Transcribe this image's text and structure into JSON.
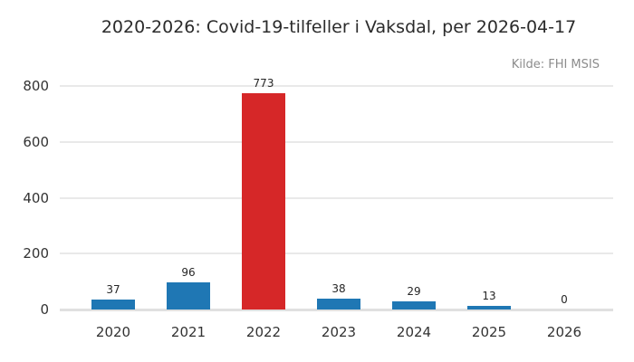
{
  "title": "2020-2026: Covid-19-tilfeller i Vaksdal, per 2026-04-17",
  "source": "Kilde: FHI MSIS",
  "chart_data": {
    "type": "bar",
    "title": "2020-2026: Covid-19-tilfeller i Vaksdal, per 2026-04-17",
    "annotation": "Kilde: FHI MSIS",
    "categories": [
      "2020",
      "2021",
      "2022",
      "2023",
      "2024",
      "2025",
      "2026"
    ],
    "values": [
      37,
      96,
      773,
      38,
      29,
      13,
      0
    ],
    "value_labels": [
      "37",
      "96",
      "773",
      "38",
      "29",
      "13",
      "0"
    ],
    "highlighted_category": "2022",
    "xlabel": "",
    "ylabel": "",
    "ylim": [
      0,
      800
    ],
    "yticks": [
      0,
      200,
      400,
      600,
      800
    ],
    "grid": "horizontal",
    "legend": "none",
    "colors": {
      "bar_default": "#1f77b4",
      "bar_highlight": "#d62728",
      "gridline": "#e9e9e9",
      "axis_line": "#e0e0e0",
      "title_text": "#2b2b2b",
      "tick_text": "#333333",
      "value_text": "#262626",
      "source_text": "#8c8c8c",
      "background": "#ffffff"
    }
  }
}
